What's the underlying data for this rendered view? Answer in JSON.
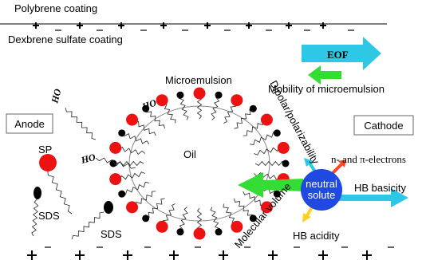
{
  "coatings": {
    "top": "Polybrene coating",
    "bottom": "Dexbrene sulfate coating"
  },
  "eof": "EOF",
  "mobility": "Mobility of microemulsion",
  "microemulsion": "Microemulsion",
  "oil": "Oil",
  "hydroxyl_labels": [
    "HO",
    "HO",
    "HO"
  ],
  "electrodes": {
    "anode": "Anode",
    "cathode": "Cathode"
  },
  "surfactants": {
    "sp": "SP",
    "sds": [
      "SDS",
      "SDS"
    ]
  },
  "solute": {
    "label": [
      "neutral",
      "solute"
    ],
    "interactions": {
      "dipolar": "Dipolar/polarizability",
      "electrons": "n- and π-electrons",
      "hb_basicity": "HB basicity",
      "hb_acidity": "HB acidity",
      "volume": "Molecular volume"
    }
  }
}
